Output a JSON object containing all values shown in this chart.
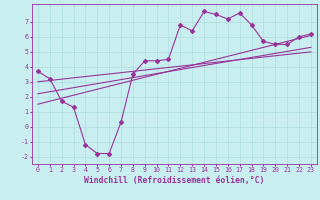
{
  "xlabel": "Windchill (Refroidissement éolien,°C)",
  "bg_color": "#c8eef0",
  "line_color": "#993399",
  "grid_color": "#b0dde0",
  "xlim": [
    -0.5,
    23.5
  ],
  "ylim": [
    -2.5,
    8.2
  ],
  "xticks": [
    0,
    1,
    2,
    3,
    4,
    5,
    6,
    7,
    8,
    9,
    10,
    11,
    12,
    13,
    14,
    15,
    16,
    17,
    18,
    19,
    20,
    21,
    22,
    23
  ],
  "yticks": [
    -2,
    -1,
    0,
    1,
    2,
    3,
    4,
    5,
    6,
    7
  ],
  "line1_x": [
    0,
    1,
    2,
    3,
    4,
    5,
    6,
    7,
    8,
    9,
    10,
    11,
    12,
    13,
    14,
    15,
    16,
    17,
    18,
    19,
    20,
    21,
    22,
    23
  ],
  "line1_y": [
    3.7,
    3.2,
    1.7,
    1.3,
    -1.2,
    -1.8,
    -1.8,
    0.3,
    3.5,
    4.4,
    4.4,
    4.5,
    6.8,
    6.4,
    7.7,
    7.5,
    7.2,
    7.6,
    6.8,
    5.7,
    5.5,
    5.5,
    6.0,
    6.2
  ],
  "line2_x": [
    0,
    23
  ],
  "line2_y": [
    2.2,
    5.3
  ],
  "line3_x": [
    0,
    23
  ],
  "line3_y": [
    1.5,
    6.1
  ],
  "line4_x": [
    0,
    23
  ],
  "line4_y": [
    3.0,
    5.0
  ],
  "font_color": "#993399",
  "tick_fontsize": 4.8,
  "xlabel_fontsize": 5.8,
  "marker_size": 2.0,
  "line_width": 0.8
}
